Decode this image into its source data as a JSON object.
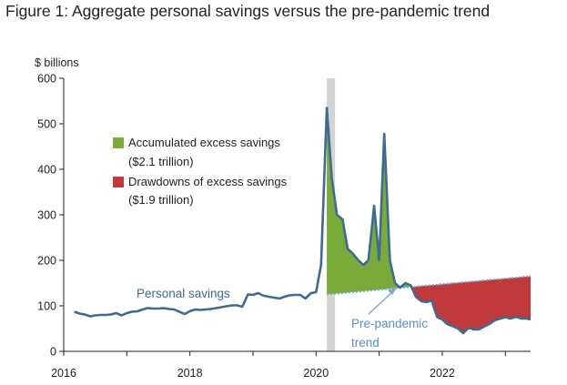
{
  "title": "Figure 1: Aggregate personal savings versus the pre-pandemic trend",
  "chart_data": {
    "type": "area",
    "ylabel": "$ billions",
    "ylim": [
      0,
      600
    ],
    "yticks": [
      "600",
      "500",
      "400",
      "300",
      "200",
      "100",
      "0"
    ],
    "xticks": [
      "2016",
      "2018",
      "2020",
      "2022"
    ],
    "xlim": [
      2016.0,
      2023.4
    ],
    "recession_band": [
      2020.17,
      2020.3
    ],
    "legend_placement": "upper-left",
    "legend": [
      {
        "label": "Accumulated excess savings",
        "sub": "($2.1 trillion)",
        "color": "#7aab3a"
      },
      {
        "label": "Drawdowns of excess savings",
        "sub": "($1.9 trillion)",
        "color": "#c0393b"
      }
    ],
    "annotations": {
      "personal_savings": "Personal savings",
      "trend_line1": "Pre-pandemic",
      "trend_line2": "trend"
    },
    "colors": {
      "savings_line": "#3e6b8f",
      "trend_line": "#7ba7d0",
      "recession": "#d4d4d4",
      "excess": "#7aab3a",
      "drawdown": "#c0393b"
    },
    "trend": {
      "x": [
        2020.17,
        2023.4
      ],
      "y": [
        125,
        165
      ]
    },
    "series": [
      {
        "name": "Personal savings",
        "x": [
          2016.17,
          2016.25,
          2016.33,
          2016.42,
          2016.5,
          2016.58,
          2016.67,
          2016.75,
          2016.83,
          2016.92,
          2017.0,
          2017.08,
          2017.17,
          2017.25,
          2017.33,
          2017.42,
          2017.5,
          2017.58,
          2017.67,
          2017.75,
          2017.83,
          2017.92,
          2018.0,
          2018.08,
          2018.17,
          2018.25,
          2018.33,
          2018.42,
          2018.5,
          2018.58,
          2018.67,
          2018.75,
          2018.83,
          2018.92,
          2019.0,
          2019.08,
          2019.17,
          2019.25,
          2019.33,
          2019.42,
          2019.5,
          2019.58,
          2019.67,
          2019.75,
          2019.83,
          2019.92,
          2020.0,
          2020.08,
          2020.17,
          2020.25,
          2020.33,
          2020.42,
          2020.5,
          2020.58,
          2020.67,
          2020.75,
          2020.83,
          2020.92,
          2021.0,
          2021.08,
          2021.17,
          2021.25,
          2021.33,
          2021.42,
          2021.5,
          2021.58,
          2021.67,
          2021.75,
          2021.83,
          2021.92,
          2022.0,
          2022.08,
          2022.17,
          2022.25,
          2022.33,
          2022.42,
          2022.5,
          2022.58,
          2022.67,
          2022.75,
          2022.83,
          2022.92,
          2023.0,
          2023.08,
          2023.17,
          2023.25,
          2023.33,
          2023.4
        ],
        "y": [
          87,
          83,
          81,
          77,
          79,
          80,
          80,
          81,
          84,
          79,
          84,
          87,
          88,
          92,
          95,
          94,
          94,
          95,
          93,
          92,
          87,
          82,
          88,
          92,
          91,
          92,
          93,
          95,
          97,
          99,
          101,
          101,
          98,
          125,
          124,
          128,
          122,
          120,
          118,
          116,
          120,
          123,
          124,
          124,
          116,
          128,
          130,
          190,
          535,
          380,
          300,
          290,
          225,
          215,
          200,
          190,
          200,
          320,
          200,
          478,
          200,
          150,
          140,
          150,
          145,
          120,
          110,
          108,
          112,
          75,
          70,
          60,
          55,
          50,
          40,
          52,
          48,
          48,
          55,
          60,
          68,
          72,
          75,
          72,
          76,
          72,
          72,
          70
        ]
      }
    ]
  }
}
